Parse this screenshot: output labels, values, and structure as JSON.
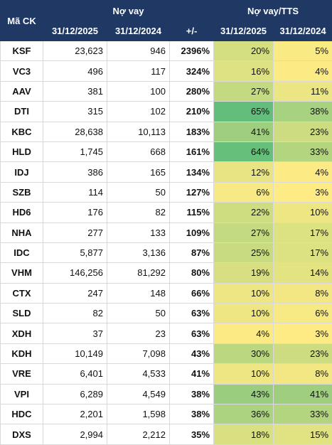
{
  "header": {
    "code": "Mã CK",
    "debt_group": "Nợ vay",
    "ratio_group": "Nợ vay/TTS",
    "date_2025": "31/12/2025",
    "date_2024": "31/12/2024",
    "change": "+/-",
    "ratio_2025": "31/12/2025",
    "ratio_2024": "31/12/2024"
  },
  "rows": [
    {
      "code": "KSF",
      "d2025": "23,623",
      "d2024": "946",
      "chg": "2396%",
      "r2025": "20%",
      "r2024": "5%"
    },
    {
      "code": "VC3",
      "d2025": "496",
      "d2024": "117",
      "chg": "324%",
      "r2025": "16%",
      "r2024": "4%"
    },
    {
      "code": "AAV",
      "d2025": "381",
      "d2024": "100",
      "chg": "280%",
      "r2025": "27%",
      "r2024": "11%"
    },
    {
      "code": "DTI",
      "d2025": "315",
      "d2024": "102",
      "chg": "210%",
      "r2025": "65%",
      "r2024": "38%"
    },
    {
      "code": "KBC",
      "d2025": "28,638",
      "d2024": "10,113",
      "chg": "183%",
      "r2025": "41%",
      "r2024": "23%"
    },
    {
      "code": "HLD",
      "d2025": "1,745",
      "d2024": "668",
      "chg": "161%",
      "r2025": "64%",
      "r2024": "33%"
    },
    {
      "code": "IDJ",
      "d2025": "386",
      "d2024": "165",
      "chg": "134%",
      "r2025": "12%",
      "r2024": "4%"
    },
    {
      "code": "SZB",
      "d2025": "114",
      "d2024": "50",
      "chg": "127%",
      "r2025": "6%",
      "r2024": "3%"
    },
    {
      "code": "HD6",
      "d2025": "176",
      "d2024": "82",
      "chg": "115%",
      "r2025": "22%",
      "r2024": "10%"
    },
    {
      "code": "NHA",
      "d2025": "277",
      "d2024": "133",
      "chg": "109%",
      "r2025": "27%",
      "r2024": "17%"
    },
    {
      "code": "IDC",
      "d2025": "5,877",
      "d2024": "3,136",
      "chg": "87%",
      "r2025": "25%",
      "r2024": "17%"
    },
    {
      "code": "VHM",
      "d2025": "146,256",
      "d2024": "81,292",
      "chg": "80%",
      "r2025": "19%",
      "r2024": "14%"
    },
    {
      "code": "CTX",
      "d2025": "247",
      "d2024": "148",
      "chg": "66%",
      "r2025": "10%",
      "r2024": "8%"
    },
    {
      "code": "SLD",
      "d2025": "82",
      "d2024": "50",
      "chg": "63%",
      "r2025": "10%",
      "r2024": "6%"
    },
    {
      "code": "XDH",
      "d2025": "37",
      "d2024": "23",
      "chg": "63%",
      "r2025": "4%",
      "r2024": "3%"
    },
    {
      "code": "KDH",
      "d2025": "10,149",
      "d2024": "7,098",
      "chg": "43%",
      "r2025": "30%",
      "r2024": "23%"
    },
    {
      "code": "VRE",
      "d2025": "6,401",
      "d2024": "4,533",
      "chg": "41%",
      "r2025": "10%",
      "r2024": "8%"
    },
    {
      "code": "VPI",
      "d2025": "6,289",
      "d2024": "4,549",
      "chg": "38%",
      "r2025": "43%",
      "r2024": "41%"
    },
    {
      "code": "HDC",
      "d2025": "2,201",
      "d2024": "1,598",
      "chg": "38%",
      "r2025": "36%",
      "r2024": "33%"
    },
    {
      "code": "DXS",
      "d2025": "2,994",
      "d2024": "2,212",
      "chg": "35%",
      "r2025": "18%",
      "r2024": "15%"
    }
  ],
  "colors": {
    "header_bg": "#1f3864",
    "scale_low": "#ffeb84",
    "scale_high": "#63be7b"
  }
}
